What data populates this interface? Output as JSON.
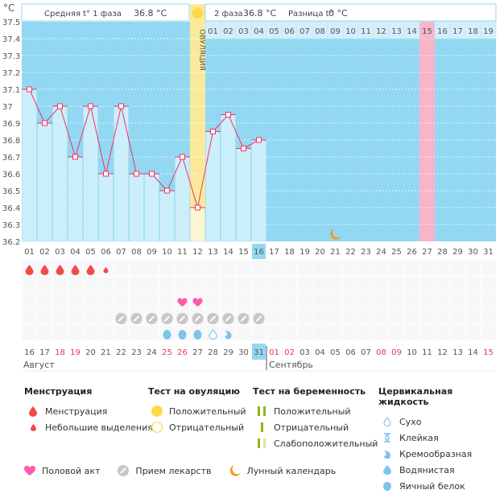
{
  "header": {
    "unit_label": "°C",
    "phase1_label": "Средняя t° 1 фаза",
    "phase1_value": "36.8 °C",
    "phase2_label": "2 фаза",
    "phase2_value": "36.8 °C",
    "diff_label": "Разница t°",
    "diff_value": "0 °C",
    "ovulation_label": "ОВУЛЯЦИЯ"
  },
  "colors": {
    "bg_blue": "#93d8f2",
    "bar_light": "#cdeefb",
    "ovulation_yellow": "#fbe99b",
    "ovulation_light": "#fdf6d2",
    "pink_day": "#f8b4c8",
    "line": "#ee3366",
    "weekend_red": "#e8335e",
    "menstruation": "#f04a4a",
    "heart": "#ff5aaf",
    "pill": "#c6c6c6",
    "fluid": "#7cc4ef",
    "moon": "#f39a1e",
    "sun": "#fdd84a",
    "preg_green": "#8cb81c"
  },
  "chart_data": {
    "type": "bar",
    "title": "",
    "ylabel": "°C",
    "ylim": [
      36.2,
      37.5
    ],
    "yticks": [
      "37.5",
      "37.4",
      "37.3",
      "37.2",
      "37.1",
      "37",
      "36.9",
      "36.8",
      "36.7",
      "36.6",
      "36.5",
      "36.4",
      "36.3",
      "36.2"
    ],
    "cycle_days": [
      "01",
      "02",
      "03",
      "04",
      "05",
      "06",
      "07",
      "08",
      "09",
      "10",
      "11",
      "12",
      "13",
      "14",
      "15",
      "16",
      "17",
      "18",
      "19",
      "20",
      "21",
      "22",
      "23",
      "24",
      "25",
      "26",
      "27",
      "28",
      "29",
      "30",
      "31"
    ],
    "current_cycle_day": "16",
    "ovulation_day_index": 11,
    "expected_period_day_index": 26,
    "moon_day_index": 20,
    "temperatures": [
      37.1,
      36.9,
      37.0,
      36.7,
      37.0,
      36.6,
      37.0,
      36.6,
      36.6,
      36.5,
      36.7,
      36.4,
      36.85,
      36.95,
      36.75,
      36.8
    ],
    "phase2_days": [
      "01",
      "02",
      "03",
      "04",
      "05",
      "06",
      "07",
      "08",
      "09",
      "10",
      "11",
      "12",
      "13",
      "14",
      "15",
      "16",
      "17",
      "18",
      "19"
    ],
    "phase2_highlight": "15",
    "calendar_dates": [
      "16",
      "17",
      "18",
      "19",
      "20",
      "21",
      "22",
      "23",
      "24",
      "25",
      "26",
      "27",
      "28",
      "29",
      "30",
      "31",
      "01",
      "02",
      "03",
      "04",
      "05",
      "06",
      "07",
      "08",
      "09",
      "10",
      "11",
      "12",
      "13",
      "14",
      "15"
    ],
    "weekend_dates_indices": [
      2,
      3,
      9,
      10,
      16,
      17,
      23,
      24,
      30
    ],
    "today_date_index": 15,
    "months": [
      "Август",
      "Сентябрь"
    ],
    "month_break_index": 16,
    "menstruation": [
      1,
      1,
      1,
      1,
      1,
      0.5
    ],
    "hearts_indices": [
      10,
      11
    ],
    "pills_indices": [
      6,
      7,
      8,
      9,
      10,
      11,
      12,
      13,
      14,
      15
    ],
    "fluid": [
      {
        "index": 9,
        "type": "egg-white"
      },
      {
        "index": 10,
        "type": "egg-white"
      },
      {
        "index": 11,
        "type": "egg-white"
      },
      {
        "index": 12,
        "type": "dry"
      },
      {
        "index": 13,
        "type": "creamy"
      }
    ]
  },
  "legend": {
    "menstruation": {
      "title": "Менструация",
      "items": [
        "Менструация",
        "Небольшие выделения"
      ]
    },
    "ovulation_test": {
      "title": "Тест на овуляцию",
      "items": [
        "Положительный",
        "Отрицательный"
      ]
    },
    "pregnancy_test": {
      "title": "Тест на беременность",
      "items": [
        "Положительный",
        "Отрицательный",
        "Слабоположительный"
      ]
    },
    "cervical_fluid": {
      "title": "Цервикальная жидкость",
      "items": [
        "Сухо",
        "Клейкая",
        "Кремообразная",
        "Водянистая",
        "Яичный белок"
      ]
    },
    "other": [
      "Половой акт",
      "Прием лекарств",
      "Лунный календарь"
    ]
  }
}
